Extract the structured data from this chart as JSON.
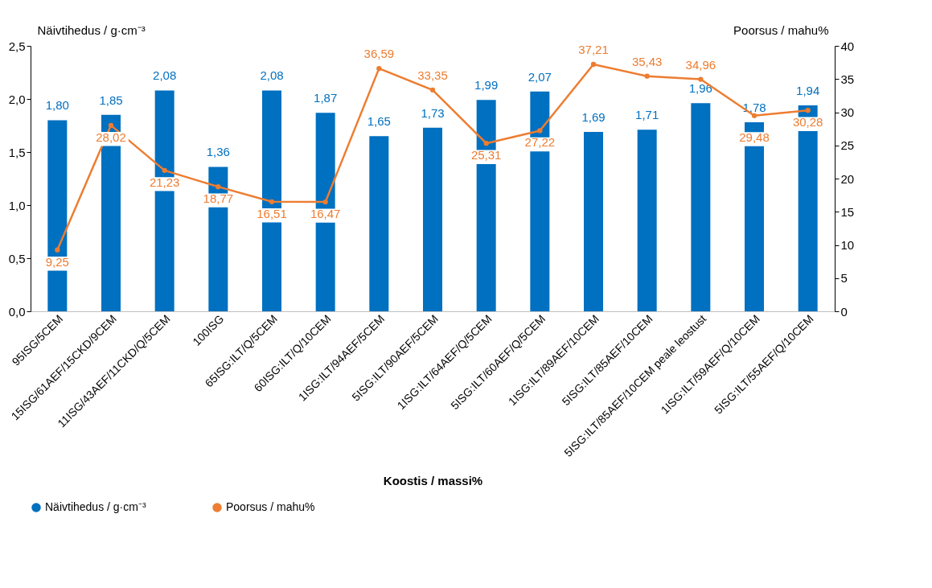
{
  "chart_data": {
    "type": "bar",
    "categories": [
      "95ISG/5CEM",
      "15ISG/61AEF/15CKD/9CEM",
      "11ISG/43AEF/11CKD/Q/5CEM",
      "100ISG",
      "65ISG:ILT/Q/5CEM",
      "60ISG:ILT/Q/10CEM",
      "1ISG:ILT/94AEF/5CEM",
      "5ISG:ILT/90AEF/5CEM",
      "1ISG:ILT/64AEF/Q/5CEM",
      "5ISG:ILT/60AEF/Q/5CEM",
      "1ISG:ILT/89AEF/10CEM",
      "5ISG:ILT/85AEF/10CEM",
      "5ISG:ILT/85AEF/10CEM peale leostust",
      "1ISG:ILT/59AEF/Q/10CEM",
      "5ISG:ILT/55AEF/Q/10CEM"
    ],
    "series": [
      {
        "name": "Näivtihedus / g·cm⁻³",
        "color": "#0070c0",
        "values": [
          1.8,
          1.85,
          2.08,
          1.36,
          2.08,
          1.87,
          1.65,
          1.73,
          1.99,
          2.07,
          1.69,
          1.71,
          1.96,
          1.78,
          1.94
        ],
        "value_labels": [
          "1,80",
          "1,85",
          "2,08",
          "1,36",
          "2,08",
          "1,87",
          "1,65",
          "1,73",
          "1,99",
          "2,07",
          "1,69",
          "1,71",
          "1,96",
          "1,78",
          "1,94"
        ]
      },
      {
        "name": "Poorsus / mahu%",
        "type": "line",
        "axis": "y2",
        "color": "#ed7d31",
        "marker": "circle",
        "line_style": "solid",
        "values": [
          9.25,
          28.02,
          21.23,
          18.77,
          16.51,
          16.47,
          36.59,
          33.35,
          25.31,
          27.22,
          37.21,
          35.43,
          34.96,
          29.48,
          30.28
        ],
        "value_labels": [
          "9,25",
          "28,02",
          "21,23",
          "18,77",
          "16,51",
          "16,47",
          "36,59",
          "33,35",
          "25,31",
          "27,22",
          "37,21",
          "35,43",
          "34,96",
          "29,48",
          "30,28"
        ]
      }
    ],
    "xlabel": "Koostis / massi%",
    "ylabel": "Näivtihedus / g·cm⁻³",
    "y2label": "Poorsus / mahu%",
    "ylim": [
      0,
      2.5
    ],
    "yticks": [
      {
        "value": 0,
        "label": "0,0"
      },
      {
        "value": 0.5,
        "label": "0,5"
      },
      {
        "value": 1.0,
        "label": "1,0"
      },
      {
        "value": 1.5,
        "label": "1,5"
      },
      {
        "value": 2.0,
        "label": "2,0"
      },
      {
        "value": 2.5,
        "label": "2,5"
      }
    ],
    "y2lim": [
      0,
      40
    ],
    "y2ticks": [
      0,
      5,
      10,
      15,
      20,
      25,
      30,
      35,
      40
    ],
    "legend": "bottom"
  }
}
